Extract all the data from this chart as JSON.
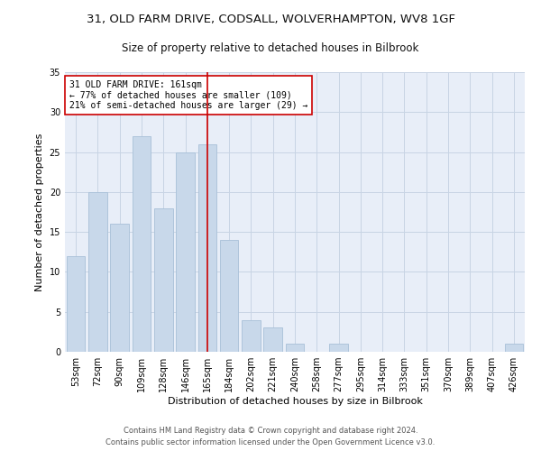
{
  "title_line1": "31, OLD FARM DRIVE, CODSALL, WOLVERHAMPTON, WV8 1GF",
  "title_line2": "Size of property relative to detached houses in Bilbrook",
  "xlabel": "Distribution of detached houses by size in Bilbrook",
  "ylabel": "Number of detached properties",
  "categories": [
    "53sqm",
    "72sqm",
    "90sqm",
    "109sqm",
    "128sqm",
    "146sqm",
    "165sqm",
    "184sqm",
    "202sqm",
    "221sqm",
    "240sqm",
    "258sqm",
    "277sqm",
    "295sqm",
    "314sqm",
    "333sqm",
    "351sqm",
    "370sqm",
    "389sqm",
    "407sqm",
    "426sqm"
  ],
  "values": [
    12,
    20,
    16,
    27,
    18,
    25,
    26,
    14,
    4,
    3,
    1,
    0,
    1,
    0,
    0,
    0,
    0,
    0,
    0,
    0,
    1
  ],
  "bar_color": "#c8d8ea",
  "bar_edgecolor": "#a8c0d8",
  "highlight_index": 6,
  "highlight_line_color": "#cc0000",
  "annotation_text": "31 OLD FARM DRIVE: 161sqm\n← 77% of detached houses are smaller (109)\n21% of semi-detached houses are larger (29) →",
  "annotation_box_color": "#ffffff",
  "annotation_border_color": "#cc0000",
  "ylim": [
    0,
    35
  ],
  "yticks": [
    0,
    5,
    10,
    15,
    20,
    25,
    30,
    35
  ],
  "grid_color": "#c8d4e4",
  "background_color": "#e8eef8",
  "fig_background": "#ffffff",
  "footer_line1": "Contains HM Land Registry data © Crown copyright and database right 2024.",
  "footer_line2": "Contains public sector information licensed under the Open Government Licence v3.0.",
  "title_fontsize": 9.5,
  "subtitle_fontsize": 8.5,
  "axis_label_fontsize": 8,
  "tick_fontsize": 7,
  "annotation_fontsize": 7,
  "footer_fontsize": 6
}
